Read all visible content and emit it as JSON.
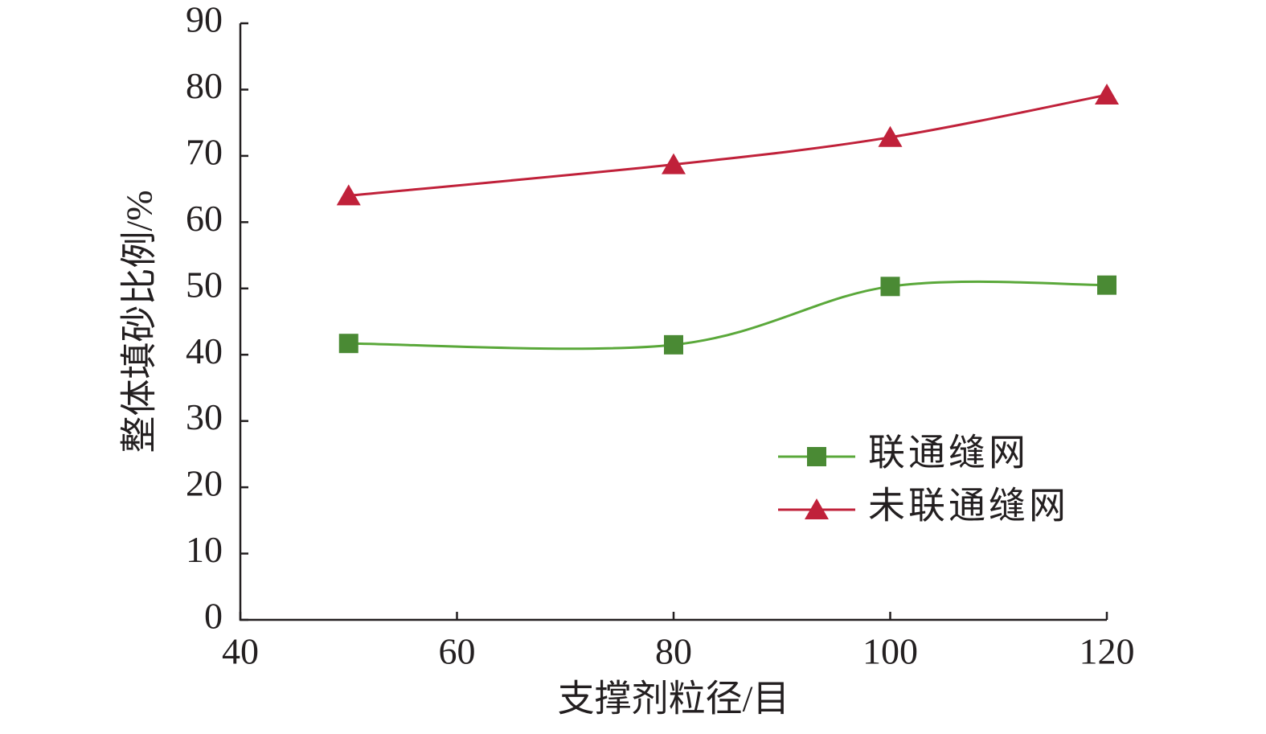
{
  "chart_data": {
    "type": "line",
    "x_label": "支撑剂粒径/目",
    "y_label": "整体填砂比例/%",
    "x": [
      50,
      80,
      100,
      120
    ],
    "series": [
      {
        "name": "联通缝网",
        "color": "#5aa83a",
        "marker_color": "#4a8a34",
        "marker": "square",
        "values": [
          41.7,
          41.5,
          50.3,
          50.5
        ]
      },
      {
        "name": "未联通缝网",
        "color": "#c0213a",
        "marker_color": "#c0213a",
        "marker": "triangle",
        "values": [
          64.0,
          68.7,
          72.8,
          79.2
        ]
      }
    ],
    "xlim": [
      40,
      120
    ],
    "xticks": [
      40,
      60,
      80,
      100,
      120
    ],
    "ylim": [
      0,
      90
    ],
    "yticks": [
      0,
      10,
      20,
      30,
      40,
      50,
      60,
      70,
      80,
      90
    ],
    "smooth": true,
    "grid": false,
    "legend": "right"
  }
}
